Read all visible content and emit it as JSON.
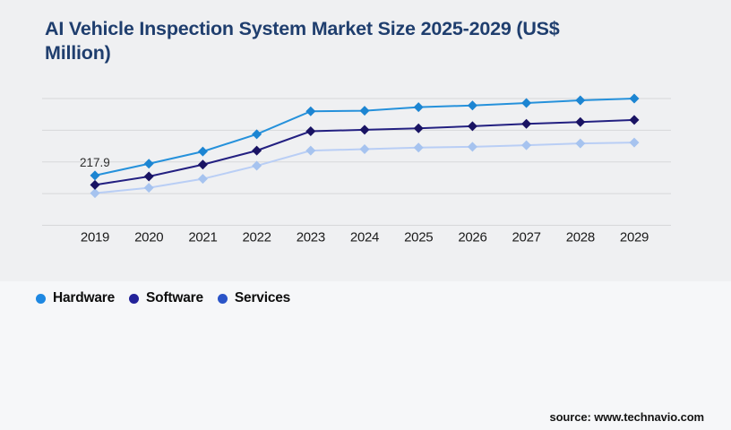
{
  "page": {
    "background_top": "#EFF0F2",
    "background_bottom": "#F6F7F9",
    "title_lines": [
      "AI Vehicle Inspection System Market Size 2025-2029 (US$",
      "Million)"
    ],
    "title_color": "#1F3E6E",
    "source_text": "source: www.technavio.com"
  },
  "chart_data": {
    "type": "line",
    "title": "AI Vehicle Inspection System Market Size 2025-2029 (US$ Million)",
    "x": [
      2019,
      2020,
      2021,
      2022,
      2023,
      2024,
      2025,
      2026,
      2027,
      2028,
      2029
    ],
    "ylim": [
      100,
      400
    ],
    "gridlines": 5,
    "y_axis_labels_visible": false,
    "values_estimated_from_pixels": true,
    "grid_color": "#D7D8DA",
    "marker_shape": "diamond",
    "legend_position": "bottom-left",
    "series": [
      {
        "name": "Hardware",
        "line_color": "#2591DB",
        "marker_color": "#1C85D2",
        "legend_color": "#1E88E2",
        "values": [
          217.9,
          245.8,
          274.7,
          315.5,
          369.8,
          371.1,
          379.5,
          383.7,
          389.4,
          395.8,
          400.0
        ]
      },
      {
        "name": "Software",
        "line_color": "#232081",
        "marker_color": "#191363",
        "legend_color": "#232299",
        "values": [
          195.7,
          215.6,
          243.7,
          276.8,
          322.5,
          326.1,
          329.6,
          334.5,
          340.2,
          344.4,
          349.3
        ]
      },
      {
        "name": "Services",
        "line_color": "#B9CEF5",
        "marker_color": "#A6C3EF",
        "legend_color": "#2A54C8",
        "values": [
          176.1,
          188.7,
          209.9,
          240.9,
          276.8,
          280.2,
          283.8,
          285.9,
          289.5,
          293.7,
          295.8
        ]
      }
    ],
    "data_labels": [
      {
        "series": "Hardware",
        "x": 2019,
        "text": "217.9"
      }
    ]
  }
}
